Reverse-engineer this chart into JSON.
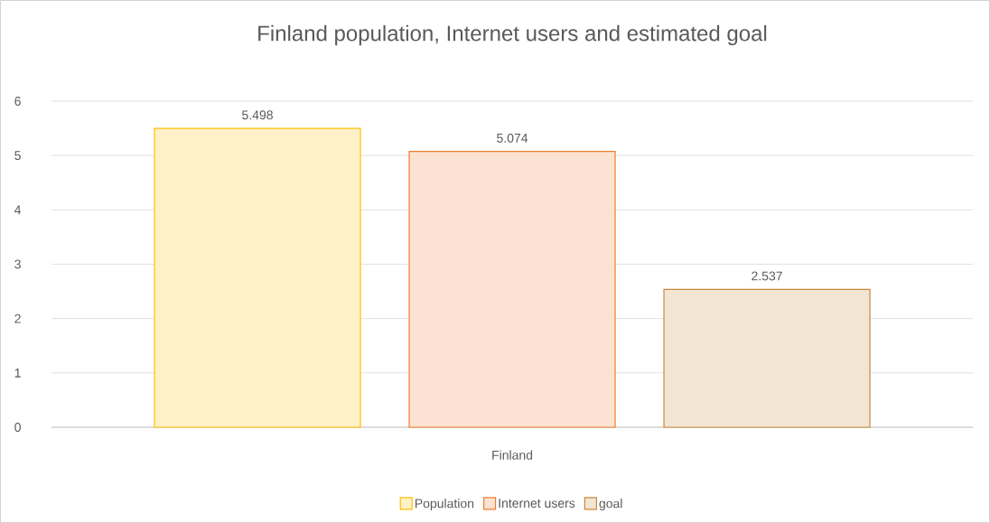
{
  "chart_data": {
    "type": "bar",
    "title": "Finland population, Internet users and estimated goal",
    "categories": [
      "Finland"
    ],
    "series": [
      {
        "name": "Population",
        "color": "#ffc000",
        "values": [
          5.498
        ]
      },
      {
        "name": "Internet users",
        "color": "#ed7d31",
        "values": [
          5.074
        ]
      },
      {
        "name": "goal",
        "color": "#c8893a",
        "values": [
          2.537
        ]
      }
    ],
    "ylim": [
      0,
      6
    ],
    "yticks": [
      0,
      1,
      2,
      3,
      4,
      5,
      6
    ],
    "grid": "y",
    "legend": "bottom",
    "data_labels": true
  }
}
